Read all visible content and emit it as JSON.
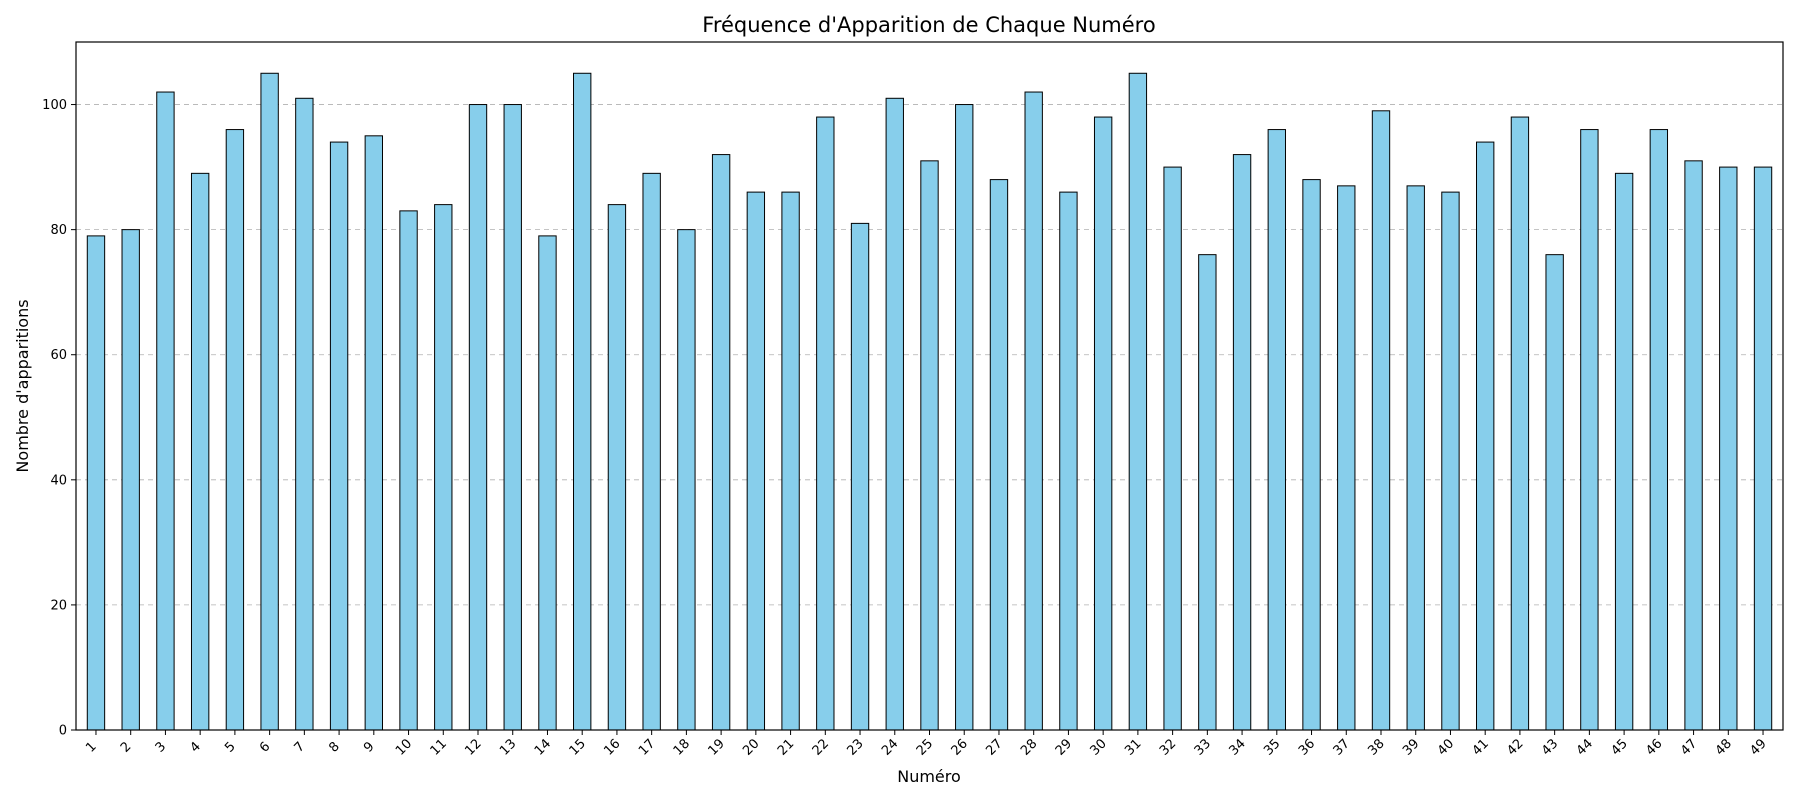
{
  "chart_data": {
    "type": "bar",
    "title": "Fréquence d'Apparition de Chaque Numéro",
    "xlabel": "Numéro",
    "ylabel": "Nombre d'apparitions",
    "categories": [
      "1",
      "2",
      "3",
      "4",
      "5",
      "6",
      "7",
      "8",
      "9",
      "10",
      "11",
      "12",
      "13",
      "14",
      "15",
      "16",
      "17",
      "18",
      "19",
      "20",
      "21",
      "22",
      "23",
      "24",
      "25",
      "26",
      "27",
      "28",
      "29",
      "30",
      "31",
      "32",
      "33",
      "34",
      "35",
      "36",
      "37",
      "38",
      "39",
      "40",
      "41",
      "42",
      "43",
      "44",
      "45",
      "46",
      "47",
      "48",
      "49"
    ],
    "values": [
      79,
      80,
      102,
      89,
      96,
      105,
      101,
      94,
      95,
      83,
      84,
      100,
      100,
      79,
      105,
      84,
      89,
      80,
      92,
      86,
      86,
      98,
      81,
      101,
      91,
      100,
      88,
      102,
      86,
      98,
      105,
      90,
      76,
      92,
      96,
      88,
      87,
      99,
      87,
      86,
      94,
      98,
      76,
      96,
      89,
      96,
      91,
      90,
      90
    ],
    "ylim": [
      0,
      110
    ],
    "yticks": [
      "0",
      "20",
      "40",
      "60",
      "80",
      "100"
    ],
    "grid": "y-dashed",
    "bar_color": "#87ceeb",
    "bar_edge_color": "#000000",
    "grid_color": "#b0b0b0",
    "x_tick_rotation_deg": 45
  }
}
